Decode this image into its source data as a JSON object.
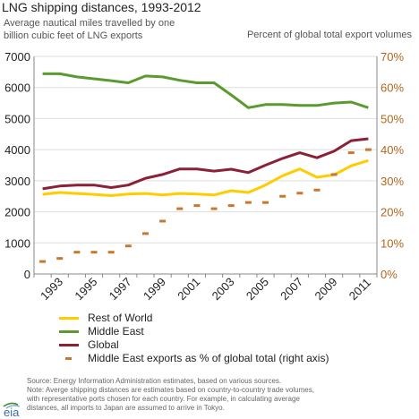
{
  "page": {
    "title": "LNG shipping distances, 1993-2012",
    "left_axis_title_line1": "Average nautical miles travelled by one",
    "left_axis_title_line2": "billion cubic feet of LNG exports",
    "right_axis_title": "Percent of global total export volumes",
    "source_line1": "Source:  Energy Information Administration estimates, based on various sources.",
    "source_line2": "Note:  Averge shipping distances are estimates based on country-to-country trade volumes,",
    "source_line3": "with representative ports chosen for each country.  For example, in calculating average",
    "source_line4": "distances, all imports to Japan are assumed to arrive in Tokyo.",
    "logo_text": "eia"
  },
  "colors": {
    "rest_of_world": "#ffcc00",
    "middle_east": "#5a9a2e",
    "global": "#8b2036",
    "me_share": "#c8772e",
    "axis_text": "#222222",
    "right_axis_text": "#b5651d",
    "grid": "#dddddd"
  },
  "chart_data": {
    "type": "line",
    "title": "LNG shipping distances, 1993-2012",
    "x": [
      1993,
      1994,
      1995,
      1996,
      1997,
      1998,
      1999,
      2000,
      2001,
      2002,
      2003,
      2004,
      2005,
      2006,
      2007,
      2008,
      2009,
      2010,
      2011,
      2012
    ],
    "x_tick_labels": [
      "1993",
      "1995",
      "1997",
      "1999",
      "2001",
      "2003",
      "2005",
      "2007",
      "2009",
      "2011"
    ],
    "left_axis": {
      "label": "Average nautical miles travelled by one billion cubic feet of LNG exports",
      "ylim": [
        0,
        7000
      ],
      "ticks": [
        "0",
        "1000",
        "2000",
        "3000",
        "4000",
        "5000",
        "6000",
        "7000"
      ]
    },
    "right_axis": {
      "label": "Percent of global total export volumes",
      "ylim": [
        0,
        70
      ],
      "ticks": [
        "0%",
        "10%",
        "20%",
        "30%",
        "40%",
        "50%",
        "60%",
        "70%"
      ]
    },
    "series": [
      {
        "name": "Rest of World",
        "axis": "left",
        "values": [
          2560,
          2620,
          2590,
          2560,
          2520,
          2570,
          2590,
          2540,
          2590,
          2570,
          2540,
          2680,
          2620,
          2860,
          3160,
          3380,
          3110,
          3190,
          3480,
          3650
        ]
      },
      {
        "name": "Middle East",
        "axis": "left",
        "values": [
          6440,
          6440,
          6340,
          6280,
          6220,
          6150,
          6370,
          6340,
          6230,
          6150,
          6150,
          5760,
          5350,
          5450,
          5450,
          5420,
          5420,
          5500,
          5530,
          5350
        ]
      },
      {
        "name": "Global",
        "axis": "left",
        "values": [
          2740,
          2830,
          2860,
          2860,
          2780,
          2860,
          3080,
          3200,
          3380,
          3380,
          3310,
          3370,
          3260,
          3500,
          3720,
          3900,
          3740,
          3950,
          4290,
          4350
        ]
      },
      {
        "name": "Middle East exports as % of global total (right axis)",
        "axis": "right",
        "style": "dashed",
        "values": [
          4,
          5,
          7,
          7,
          7,
          9,
          13,
          17,
          21,
          22,
          21,
          22,
          23,
          23,
          25,
          26,
          27,
          32,
          39,
          40
        ]
      }
    ],
    "grid": true,
    "legend_position": "bottom-left"
  }
}
